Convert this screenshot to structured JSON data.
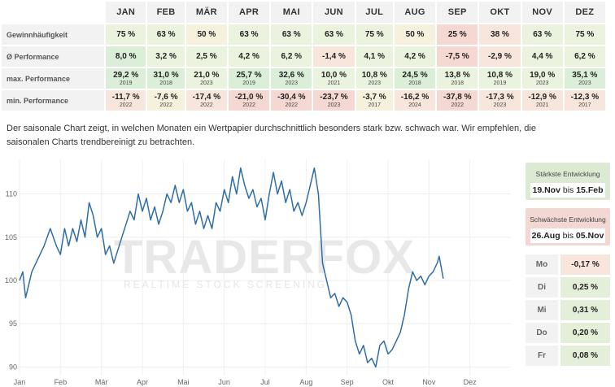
{
  "table": {
    "months": [
      "JAN",
      "FEB",
      "MÄR",
      "APR",
      "MAI",
      "JUN",
      "JUL",
      "AUG",
      "SEP",
      "OKT",
      "NOV",
      "DEZ"
    ],
    "rows": [
      {
        "label": "Gewinnhäufigkeit",
        "values": [
          "75 %",
          "63 %",
          "50 %",
          "63 %",
          "63 %",
          "63 %",
          "75 %",
          "50 %",
          "25 %",
          "38 %",
          "63 %",
          "75 %"
        ]
      },
      {
        "label": "Ø Performance",
        "values": [
          "8,0 %",
          "3,2 %",
          "2,5 %",
          "4,2 %",
          "6,2 %",
          "-1,4 %",
          "4,1 %",
          "4,2 %",
          "-7,5 %",
          "-2,9 %",
          "4,4 %",
          "6,2 %"
        ]
      },
      {
        "label": "max. Performance",
        "values": [
          "29,2 %",
          "31,0 %",
          "21,0 %",
          "25,7 %",
          "32,6 %",
          "10,0 %",
          "10,8 %",
          "24,5 %",
          "13,8 %",
          "10,8 %",
          "19,0 %",
          "35,1 %"
        ],
        "years": [
          "2019",
          "2018",
          "2023",
          "2019",
          "2023",
          "2021",
          "2023",
          "2018",
          "2018",
          "2019",
          "2023",
          "2023"
        ]
      },
      {
        "label": "min. Performance",
        "values": [
          "-11,7 %",
          "-7,6 %",
          "-17,4 %",
          "-21,0 %",
          "-30,4 %",
          "-23,7 %",
          "-3,7 %",
          "-16,2 %",
          "-37,8 %",
          "-17,3 %",
          "-12,9 %",
          "-12,3 %"
        ],
        "years": [
          "2022",
          "2022",
          "2022",
          "2022",
          "2022",
          "2023",
          "2017",
          "2024",
          "2022",
          "2023",
          "2021",
          "2017"
        ]
      }
    ]
  },
  "description": "Der saisonale Chart zeigt, in welchen Monaten ein Wertpapier durchschnittlich besonders stark bzw. schwach war. Wir empfehlen, die saisonalen Charts trendbereinigt zu betrachten.",
  "watermark": {
    "brand": "TRADERFOX",
    "tagline": "REALTIME STOCK SCREENING"
  },
  "chart_data": {
    "type": "line",
    "x_labels": [
      "Jan",
      "Feb",
      "Mär",
      "Apr",
      "Mai",
      "Jun",
      "Jul",
      "Aug",
      "Sep",
      "Okt",
      "Nov",
      "Dez"
    ],
    "yticks": [
      90,
      95,
      100,
      105,
      110
    ],
    "ylim": [
      89,
      114
    ],
    "series": [
      {
        "color": "#2f6ea6",
        "points": [
          [
            0,
            100
          ],
          [
            0.08,
            101
          ],
          [
            0.15,
            98
          ],
          [
            0.3,
            101
          ],
          [
            0.45,
            102.5
          ],
          [
            0.6,
            104
          ],
          [
            0.75,
            106
          ],
          [
            0.9,
            104
          ],
          [
            1.0,
            103
          ],
          [
            1.1,
            106
          ],
          [
            1.2,
            104
          ],
          [
            1.3,
            106
          ],
          [
            1.4,
            104.5
          ],
          [
            1.5,
            107
          ],
          [
            1.6,
            105
          ],
          [
            1.7,
            109
          ],
          [
            1.8,
            107.5
          ],
          [
            1.9,
            105
          ],
          [
            2.0,
            106
          ],
          [
            2.1,
            103
          ],
          [
            2.2,
            104
          ],
          [
            2.3,
            102
          ],
          [
            2.4,
            103.5
          ],
          [
            2.5,
            105
          ],
          [
            2.6,
            106.5
          ],
          [
            2.7,
            108
          ],
          [
            2.8,
            107
          ],
          [
            2.9,
            110
          ],
          [
            3.0,
            108
          ],
          [
            3.1,
            109.5
          ],
          [
            3.2,
            107
          ],
          [
            3.3,
            108.5
          ],
          [
            3.4,
            106.5
          ],
          [
            3.5,
            108
          ],
          [
            3.6,
            110
          ],
          [
            3.7,
            109
          ],
          [
            3.8,
            111
          ],
          [
            3.9,
            109
          ],
          [
            4.0,
            110.5
          ],
          [
            4.1,
            108
          ],
          [
            4.2,
            109
          ],
          [
            4.3,
            106.5
          ],
          [
            4.4,
            108
          ],
          [
            4.5,
            106
          ],
          [
            4.6,
            107.5
          ],
          [
            4.7,
            106
          ],
          [
            4.8,
            109
          ],
          [
            4.9,
            108
          ],
          [
            5.0,
            110.5
          ],
          [
            5.1,
            109
          ],
          [
            5.2,
            112
          ],
          [
            5.3,
            110
          ],
          [
            5.4,
            113
          ],
          [
            5.5,
            111
          ],
          [
            5.6,
            109.5
          ],
          [
            5.7,
            110.5
          ],
          [
            5.8,
            108.5
          ],
          [
            5.9,
            109.5
          ],
          [
            6.0,
            107
          ],
          [
            6.1,
            110
          ],
          [
            6.2,
            112.5
          ],
          [
            6.3,
            110
          ],
          [
            6.4,
            111.5
          ],
          [
            6.5,
            109
          ],
          [
            6.6,
            110.5
          ],
          [
            6.7,
            108
          ],
          [
            6.8,
            109
          ],
          [
            6.9,
            107.5
          ],
          [
            7.0,
            109
          ],
          [
            7.1,
            111
          ],
          [
            7.2,
            113
          ],
          [
            7.3,
            110
          ],
          [
            7.4,
            102
          ],
          [
            7.5,
            100
          ],
          [
            7.6,
            98
          ],
          [
            7.7,
            98.5
          ],
          [
            7.8,
            97
          ],
          [
            7.9,
            98
          ],
          [
            8.0,
            97.5
          ],
          [
            8.1,
            96
          ],
          [
            8.2,
            93
          ],
          [
            8.3,
            91.5
          ],
          [
            8.4,
            92.5
          ],
          [
            8.5,
            90.5
          ],
          [
            8.6,
            91
          ],
          [
            8.7,
            90
          ],
          [
            8.8,
            92.5
          ],
          [
            8.9,
            93
          ],
          [
            9.0,
            91.5
          ],
          [
            9.1,
            92
          ],
          [
            9.2,
            93
          ],
          [
            9.3,
            94
          ],
          [
            9.4,
            96
          ],
          [
            9.5,
            99
          ],
          [
            9.6,
            101
          ],
          [
            9.7,
            100
          ],
          [
            9.8,
            100.5
          ],
          [
            9.9,
            99.5
          ],
          [
            10.0,
            100.5
          ],
          [
            10.1,
            101
          ],
          [
            10.2,
            102
          ],
          [
            10.25,
            102.8
          ],
          [
            10.3,
            101.5
          ],
          [
            10.35,
            100.2
          ]
        ]
      }
    ]
  },
  "best": {
    "title": "Stärkste Entwicklung",
    "start": "19.Nov",
    "sep": "bis",
    "end": "15.Feb"
  },
  "worst": {
    "title": "Schwächste Entwicklung",
    "start": "26.Aug",
    "sep": "bis",
    "end": "05.Nov"
  },
  "weekdays": [
    {
      "day": "Mo",
      "value": "-0,17 %"
    },
    {
      "day": "Di",
      "value": "0,25 %"
    },
    {
      "day": "Mi",
      "value": "0,31 %"
    },
    {
      "day": "Do",
      "value": "0,20 %"
    },
    {
      "day": "Fr",
      "value": "0,08 %"
    }
  ],
  "colors": {
    "strong_green": "#dbeed8",
    "light_green": "#e9f3de",
    "neutral": "#f5f1dc",
    "light_red": "#f8e6dc",
    "red": "#f6d8d2",
    "line": "#2f6ea6"
  }
}
